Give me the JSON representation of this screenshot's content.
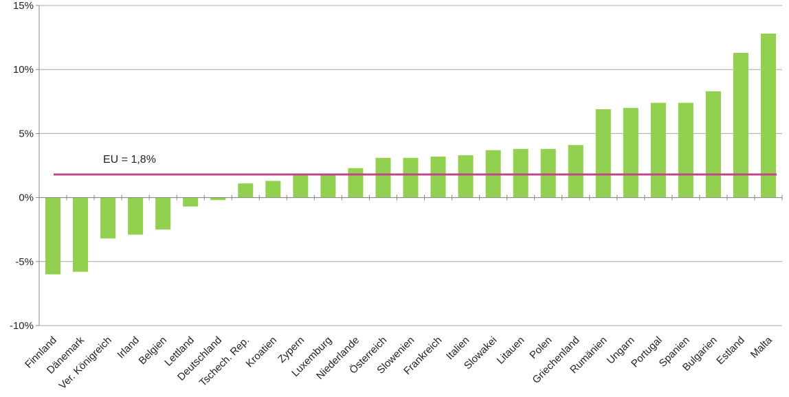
{
  "chart_data": {
    "type": "bar",
    "categories": [
      "Finnland",
      "Dänemark",
      "Ver. Königreich",
      "Irland",
      "Belgien",
      "Lettland",
      "Deutschland",
      "Tschech. Rep.",
      "Kroatien",
      "Zypern",
      "Luxemburg",
      "Niederlande",
      "Österreich",
      "Slowenien",
      "Frankreich",
      "Italien",
      "Slowakei",
      "Litauen",
      "Polen",
      "Griechenland",
      "Rumänien",
      "Ungarn",
      "Portugal",
      "Spanien",
      "Bulgarien",
      "Estland",
      "Malta"
    ],
    "values": [
      -6.0,
      -5.8,
      -3.2,
      -2.9,
      -2.5,
      -0.7,
      -0.2,
      1.1,
      1.3,
      1.8,
      1.8,
      2.3,
      3.1,
      3.1,
      3.2,
      3.3,
      3.7,
      3.8,
      3.8,
      4.1,
      6.9,
      7.0,
      7.4,
      7.4,
      8.3,
      11.3,
      12.8
    ],
    "ylim": [
      -10,
      15
    ],
    "yticks": [
      "-10%",
      "-5%",
      "0%",
      "5%",
      "10%",
      "15%"
    ],
    "ytick_values": [
      -10,
      -5,
      0,
      5,
      10,
      15
    ],
    "grid": true,
    "bar_color": "#92d050",
    "reference_line": {
      "label": "EU = 1,8%",
      "value": 1.8,
      "color": "#c0458a"
    }
  }
}
